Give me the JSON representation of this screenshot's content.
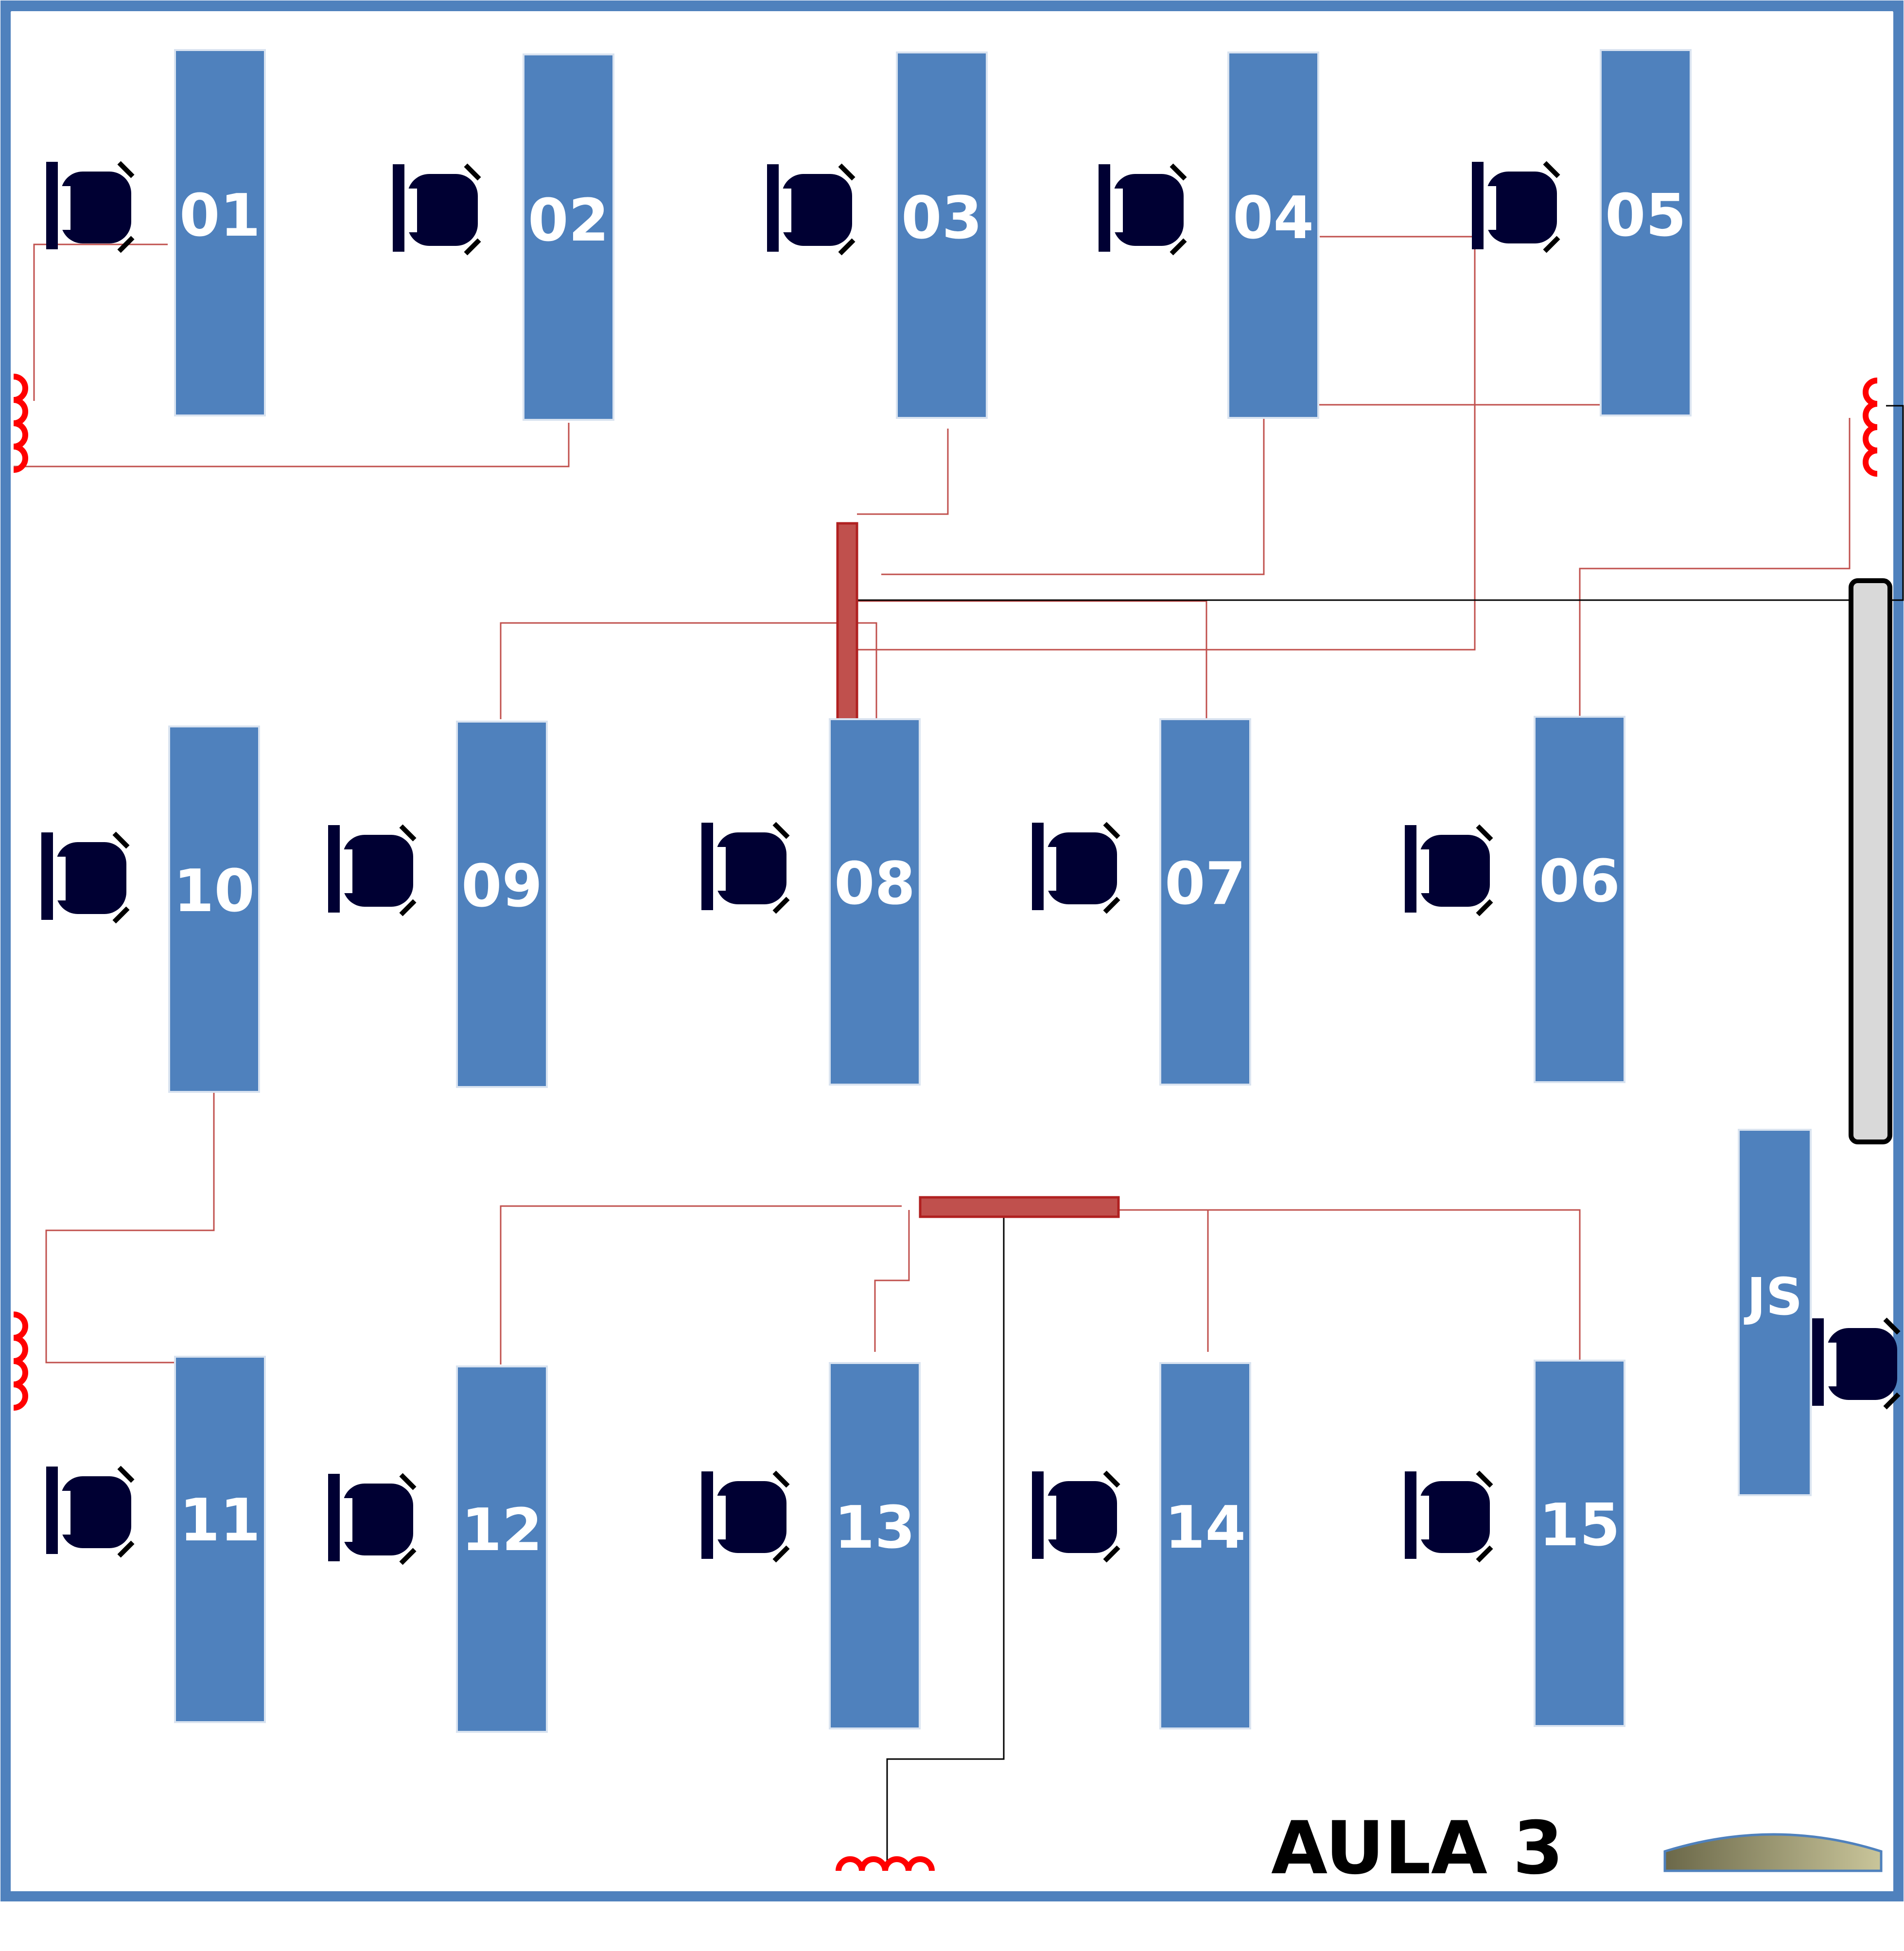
{
  "room": {
    "title": "AULA 3",
    "colors": {
      "wall": "#4F81BD",
      "desk": "#4F81BD",
      "desk_label": "#FFFFFF",
      "chair": "#000033",
      "cable": "#C0504D",
      "switch": "#C0504D",
      "outlet": "#FF0000",
      "door": "#D9D9D9",
      "title": "#000000"
    }
  },
  "desks": [
    {
      "id": "01"
    },
    {
      "id": "02"
    },
    {
      "id": "03"
    },
    {
      "id": "04"
    },
    {
      "id": "05"
    },
    {
      "id": "06"
    },
    {
      "id": "07"
    },
    {
      "id": "08"
    },
    {
      "id": "09"
    },
    {
      "id": "10"
    },
    {
      "id": "11"
    },
    {
      "id": "12"
    },
    {
      "id": "13"
    },
    {
      "id": "14"
    },
    {
      "id": "15"
    },
    {
      "id": "JS"
    }
  ],
  "icons": {
    "chair": "office-chair-icon",
    "outlet": "network-outlet-icon",
    "switch": "network-switch-icon",
    "door": "door-icon",
    "sink": "sink-icon"
  }
}
